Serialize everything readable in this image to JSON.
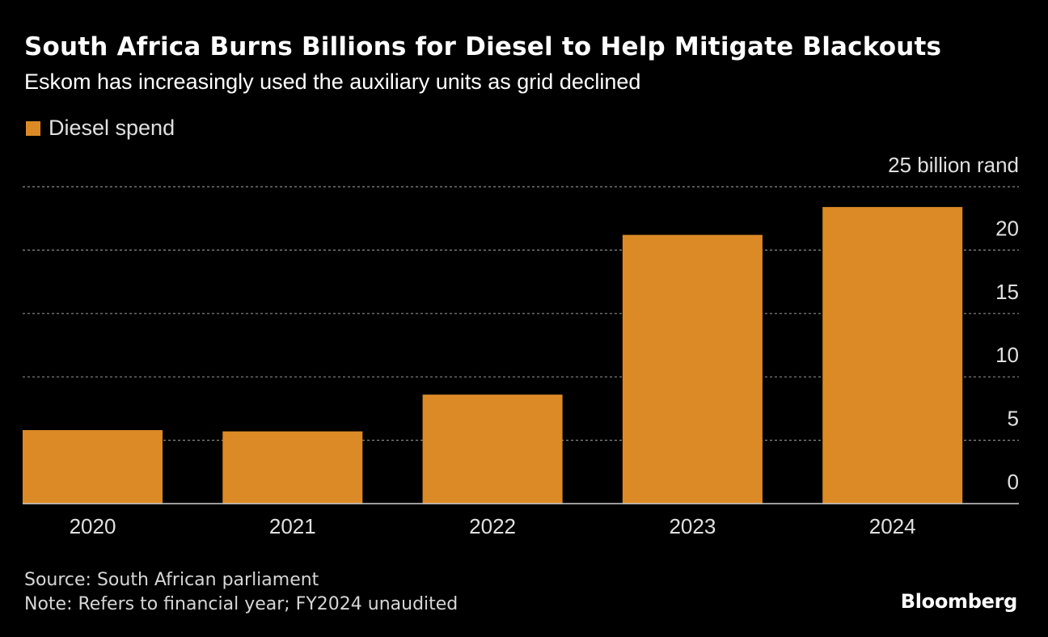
{
  "header": {
    "title": "South Africa Burns Billions for Diesel to Help Mitigate Blackouts",
    "subtitle": "Eskom has increasingly used the auxiliary units as grid declined"
  },
  "legend": {
    "label": "Diesel spend"
  },
  "footer": {
    "source": "Source: South African parliament",
    "note": "Note: Refers to financial year; FY2024 unaudited",
    "brand": "Bloomberg"
  },
  "colors": {
    "bar": "#dc8a26",
    "background": "#000000",
    "grid": "#8a8a8a",
    "text": "#e0e0e0"
  },
  "chart_data": {
    "type": "bar",
    "title": "South Africa Burns Billions for Diesel to Help Mitigate Blackouts",
    "subtitle": "Eskom has increasingly used the auxiliary units as grid declined",
    "categories": [
      "2020",
      "2021",
      "2022",
      "2023",
      "2024"
    ],
    "series": [
      {
        "name": "Diesel spend",
        "values": [
          5.8,
          5.7,
          8.6,
          21.2,
          23.4
        ]
      }
    ],
    "ylim": [
      0,
      25
    ],
    "yticks": [
      0,
      5,
      10,
      15,
      20,
      25
    ],
    "ytick_labels": [
      "0",
      "5",
      "10",
      "15",
      "20",
      "25 billion rand"
    ],
    "xlabel": "",
    "ylabel": "billion rand",
    "grid": true,
    "y_axis_position": "right",
    "legend_position": "top-left"
  }
}
